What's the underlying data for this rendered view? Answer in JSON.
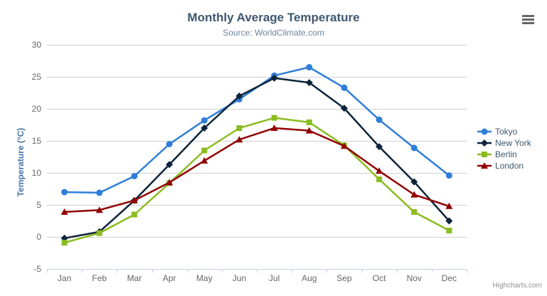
{
  "chart_data": {
    "type": "line",
    "title": "Monthly Average Temperature",
    "subtitle": "Source: WorldClimate.com",
    "xlabel": "",
    "ylabel": "Temperature (°C)",
    "categories": [
      "Jan",
      "Feb",
      "Mar",
      "Apr",
      "May",
      "Jun",
      "Jul",
      "Aug",
      "Sep",
      "Oct",
      "Nov",
      "Dec"
    ],
    "ylim": [
      -5,
      30
    ],
    "y_ticks": [
      -5,
      0,
      5,
      10,
      15,
      20,
      25,
      30
    ],
    "grid": true,
    "legend_position": "right",
    "series": [
      {
        "name": "Tokyo",
        "color": "#2f7ed8",
        "marker": "circle",
        "values": [
          7.0,
          6.9,
          9.5,
          14.5,
          18.2,
          21.5,
          25.2,
          26.5,
          23.3,
          18.3,
          13.9,
          9.6
        ]
      },
      {
        "name": "New York",
        "color": "#0d233a",
        "marker": "diamond",
        "values": [
          -0.2,
          0.8,
          5.7,
          11.3,
          17.0,
          22.0,
          24.8,
          24.1,
          20.1,
          14.1,
          8.6,
          2.5
        ]
      },
      {
        "name": "Berlin",
        "color": "#8bbc21",
        "marker": "square",
        "values": [
          -0.9,
          0.6,
          3.5,
          8.4,
          13.5,
          17.0,
          18.6,
          17.9,
          14.3,
          9.0,
          3.9,
          1.0
        ]
      },
      {
        "name": "London",
        "color": "#910000",
        "marker": "triangle",
        "values": [
          3.9,
          4.2,
          5.7,
          8.5,
          11.9,
          15.2,
          17.0,
          16.6,
          14.2,
          10.3,
          6.6,
          4.8
        ]
      }
    ],
    "grid_color": "#d0d0d0",
    "axis_line_color": "#c0d0e0"
  },
  "context_menu": {
    "icon": "hamburger-menu-icon"
  },
  "credits": {
    "text": "Highcharts.com"
  }
}
